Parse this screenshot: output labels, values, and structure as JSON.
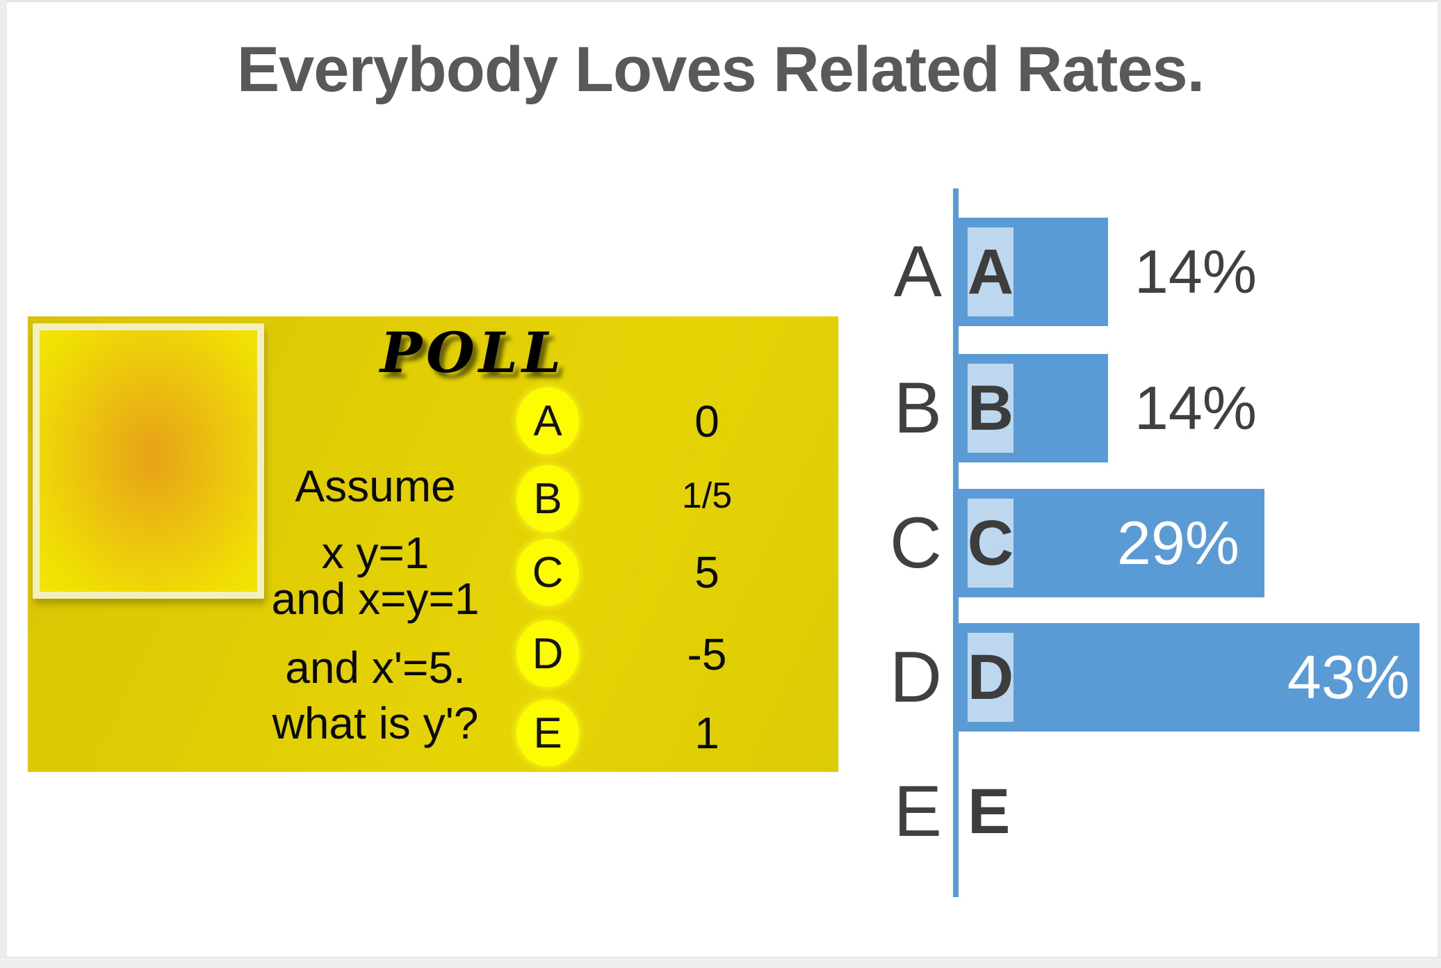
{
  "title": "Everybody Loves Related Rates.",
  "poll": {
    "heading": "POLL",
    "question_lines": [
      "Assume",
      "x y=1",
      "and x=y=1",
      "and x'=5.",
      "what is y'?"
    ],
    "options": [
      {
        "letter": "A",
        "value": "0"
      },
      {
        "letter": "B",
        "value": "1/5"
      },
      {
        "letter": "C",
        "value": "5"
      },
      {
        "letter": "D",
        "value": "-5"
      },
      {
        "letter": "E",
        "value": "1"
      }
    ]
  },
  "chart_data": {
    "type": "bar",
    "orientation": "horizontal",
    "title": "",
    "xlabel": "",
    "ylabel": "",
    "legend": "none",
    "grid": false,
    "axis": "single vertical baseline at left of bars",
    "categories": [
      "A",
      "B",
      "C",
      "D",
      "E"
    ],
    "values": [
      14,
      14,
      29,
      43,
      0
    ],
    "xlim": [
      0,
      45
    ],
    "rows": [
      {
        "category": "A",
        "inner_letter": "A",
        "percent": 14,
        "label": "14%",
        "label_style": "dark-outside-bar"
      },
      {
        "category": "B",
        "inner_letter": "B",
        "percent": 14,
        "label": "14%",
        "label_style": "dark-outside-bar"
      },
      {
        "category": "C",
        "inner_letter": "C",
        "percent": 29,
        "label": "29%",
        "label_style": "white-inside-bar"
      },
      {
        "category": "D",
        "inner_letter": "D",
        "percent": 43,
        "label": "43%",
        "label_style": "white-inside-bar"
      },
      {
        "category": "E",
        "inner_letter": "E",
        "percent": 0,
        "label": "",
        "label_style": "none"
      }
    ]
  },
  "colors": {
    "bar_blue": "#5b9bd5",
    "chip_light_blue": "#bdd7ee",
    "axis_blue": "#5b9bd5",
    "title_gray": "#595959",
    "chart_text_dark": "#404040",
    "poll_box_yellow": "#ddca04",
    "sticky_note_center_orange": "#e7a117",
    "option_circle_yellow": "#fdfd00"
  }
}
